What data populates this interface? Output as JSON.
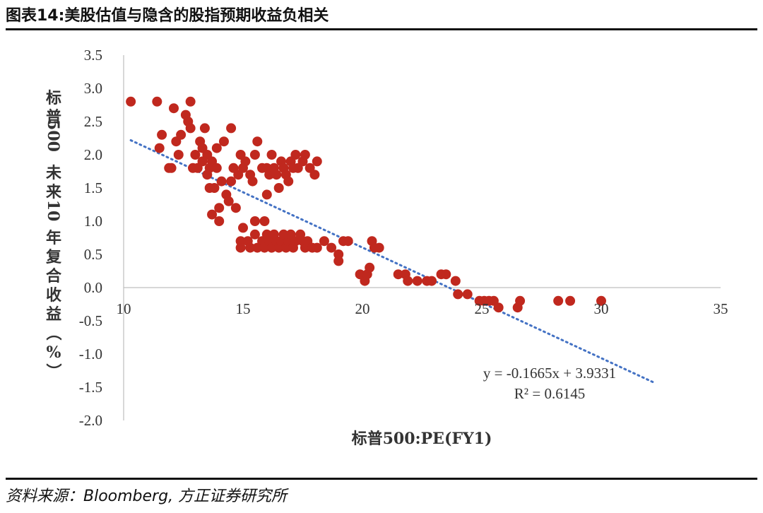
{
  "title": "图表14:美股估值与隐含的股指预期收益负相关",
  "source": "资料来源：Bloomberg, 方正证券研究所",
  "chart_data": {
    "type": "scatter",
    "xlabel": "标普500:PE(FY1)",
    "ylabel": "标普500未来10年复合收益（%）",
    "xlim": [
      10,
      35
    ],
    "ylim": [
      -2.0,
      3.5
    ],
    "x_ticks": [
      "10",
      "15",
      "20",
      "25",
      "30",
      "35"
    ],
    "y_ticks": [
      "3.5",
      "3.0",
      "2.5",
      "2.0",
      "1.5",
      "1.0",
      "0.5",
      "0.0",
      "-0.5",
      "-1.0",
      "-1.5",
      "-2.0"
    ],
    "point_color": "#c0281e",
    "trend_color": "#4472c4",
    "trendline": {
      "slope": -0.1665,
      "intercept": 3.9331,
      "x_range": [
        10.3,
        32.2
      ]
    },
    "equation": "y = -0.1665x + 3.9331",
    "r_squared": "R² = 0.6145",
    "points": [
      [
        10.3,
        2.8
      ],
      [
        11.4,
        2.8
      ],
      [
        11.5,
        2.1
      ],
      [
        11.6,
        2.3
      ],
      [
        11.9,
        1.8
      ],
      [
        12.0,
        1.8
      ],
      [
        12.1,
        2.7
      ],
      [
        12.2,
        2.2
      ],
      [
        12.3,
        2.0
      ],
      [
        12.4,
        2.3
      ],
      [
        12.6,
        2.6
      ],
      [
        12.7,
        2.5
      ],
      [
        12.8,
        2.8
      ],
      [
        12.8,
        2.4
      ],
      [
        12.9,
        1.8
      ],
      [
        13.0,
        2.0
      ],
      [
        13.1,
        1.8
      ],
      [
        13.2,
        2.2
      ],
      [
        13.3,
        2.1
      ],
      [
        13.3,
        1.9
      ],
      [
        13.4,
        2.4
      ],
      [
        13.5,
        2.0
      ],
      [
        13.5,
        1.7
      ],
      [
        13.6,
        1.8
      ],
      [
        13.6,
        1.5
      ],
      [
        13.7,
        1.9
      ],
      [
        13.7,
        1.1
      ],
      [
        13.8,
        1.5
      ],
      [
        13.9,
        2.1
      ],
      [
        13.9,
        1.8
      ],
      [
        14.0,
        1.2
      ],
      [
        14.0,
        1.0
      ],
      [
        14.1,
        1.6
      ],
      [
        14.2,
        2.2
      ],
      [
        14.3,
        1.4
      ],
      [
        14.4,
        1.3
      ],
      [
        14.5,
        2.4
      ],
      [
        14.5,
        1.6
      ],
      [
        14.6,
        1.8
      ],
      [
        14.7,
        1.2
      ],
      [
        14.8,
        1.7
      ],
      [
        14.9,
        2.0
      ],
      [
        15.0,
        1.8
      ],
      [
        15.1,
        1.9
      ],
      [
        15.3,
        1.7
      ],
      [
        15.4,
        1.6
      ],
      [
        15.5,
        2.0
      ],
      [
        15.6,
        2.2
      ],
      [
        15.8,
        1.8
      ],
      [
        16.0,
        1.8
      ],
      [
        16.0,
        1.4
      ],
      [
        16.1,
        1.7
      ],
      [
        16.2,
        2.0
      ],
      [
        16.3,
        1.8
      ],
      [
        16.4,
        1.7
      ],
      [
        16.5,
        1.5
      ],
      [
        16.6,
        1.9
      ],
      [
        16.7,
        1.8
      ],
      [
        16.8,
        1.7
      ],
      [
        16.9,
        1.6
      ],
      [
        17.0,
        1.9
      ],
      [
        17.1,
        1.8
      ],
      [
        17.2,
        2.0
      ],
      [
        17.3,
        1.8
      ],
      [
        17.5,
        1.9
      ],
      [
        17.6,
        2.0
      ],
      [
        17.8,
        1.8
      ],
      [
        18.0,
        1.7
      ],
      [
        18.1,
        1.9
      ],
      [
        15.5,
        1.0
      ],
      [
        15.9,
        1.0
      ],
      [
        15.0,
        0.9
      ],
      [
        14.9,
        0.7
      ],
      [
        14.9,
        0.6
      ],
      [
        15.2,
        0.7
      ],
      [
        15.3,
        0.6
      ],
      [
        15.5,
        0.8
      ],
      [
        15.6,
        0.6
      ],
      [
        15.8,
        0.7
      ],
      [
        15.9,
        0.6
      ],
      [
        16.0,
        0.8
      ],
      [
        16.1,
        0.7
      ],
      [
        16.2,
        0.6
      ],
      [
        16.3,
        0.8
      ],
      [
        16.4,
        0.7
      ],
      [
        16.5,
        0.6
      ],
      [
        16.6,
        0.7
      ],
      [
        16.7,
        0.8
      ],
      [
        16.8,
        0.6
      ],
      [
        16.9,
        0.7
      ],
      [
        17.0,
        0.8
      ],
      [
        17.1,
        0.6
      ],
      [
        17.2,
        0.7
      ],
      [
        17.4,
        0.8
      ],
      [
        17.5,
        0.7
      ],
      [
        17.6,
        0.6
      ],
      [
        17.7,
        0.7
      ],
      [
        17.9,
        0.6
      ],
      [
        18.1,
        0.6
      ],
      [
        18.4,
        0.7
      ],
      [
        18.7,
        0.6
      ],
      [
        19.0,
        0.5
      ],
      [
        19.0,
        0.4
      ],
      [
        19.2,
        0.7
      ],
      [
        19.4,
        0.7
      ],
      [
        19.9,
        0.2
      ],
      [
        20.1,
        0.1
      ],
      [
        20.2,
        0.2
      ],
      [
        20.3,
        0.3
      ],
      [
        20.4,
        0.7
      ],
      [
        20.5,
        0.6
      ],
      [
        20.7,
        0.6
      ],
      [
        21.5,
        0.2
      ],
      [
        21.8,
        0.2
      ],
      [
        21.9,
        0.1
      ],
      [
        22.3,
        0.1
      ],
      [
        22.7,
        0.1
      ],
      [
        22.9,
        0.1
      ],
      [
        23.3,
        0.2
      ],
      [
        23.5,
        0.2
      ],
      [
        23.9,
        0.1
      ],
      [
        24.0,
        -0.1
      ],
      [
        24.4,
        -0.1
      ],
      [
        24.9,
        -0.2
      ],
      [
        25.1,
        -0.2
      ],
      [
        25.3,
        -0.2
      ],
      [
        25.5,
        -0.2
      ],
      [
        25.7,
        -0.3
      ],
      [
        26.5,
        -0.3
      ],
      [
        26.6,
        -0.2
      ],
      [
        28.2,
        -0.2
      ],
      [
        28.7,
        -0.2
      ],
      [
        30.0,
        -0.2
      ]
    ]
  }
}
